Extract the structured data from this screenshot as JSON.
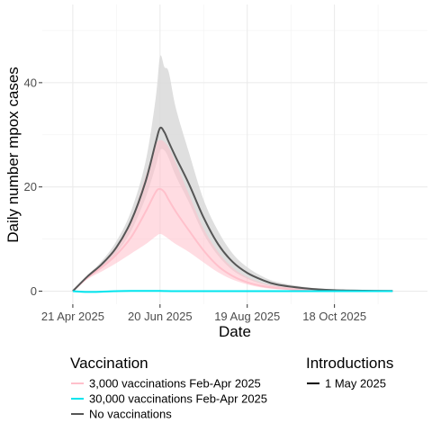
{
  "chart_data": {
    "type": "line",
    "xlabel": "Date",
    "ylabel": "Daily number mpox cases",
    "x_ticks": [
      "21 Apr 2025",
      "20 Jun 2025",
      "19 Aug 2025",
      "18 Oct 2025"
    ],
    "y_ticks": [
      "0",
      "20",
      "40"
    ],
    "xlim": [
      "2025-03-31",
      "2025-12-21"
    ],
    "ylim": [
      -2.5,
      55
    ],
    "grid": true,
    "legend_position": "bottom",
    "colors": {
      "3,000 vaccinations Feb-Apr 2025": "#ffc0cb",
      "30,000 vaccinations Feb-Apr 2025": "#00e5ee",
      "No vaccinations": "#555555",
      "ribbon_none": "#d9d9d9",
      "ribbon_3000": "#ffc0cb"
    },
    "series": [
      {
        "name": "No vaccinations",
        "x": [
          "2025-04-21",
          "2025-05-01",
          "2025-05-11",
          "2025-05-21",
          "2025-05-31",
          "2025-06-10",
          "2025-06-17",
          "2025-06-20",
          "2025-06-23",
          "2025-06-26",
          "2025-07-01",
          "2025-07-10",
          "2025-07-20",
          "2025-07-30",
          "2025-08-09",
          "2025-08-19",
          "2025-08-29",
          "2025-09-08",
          "2025-09-28",
          "2025-10-18",
          "2025-11-07",
          "2025-11-27"
        ],
        "y": [
          0,
          2.8,
          5.2,
          8.4,
          13.4,
          21,
          28.5,
          31.3,
          30.5,
          28.6,
          25.6,
          20.5,
          14.1,
          9.0,
          5.6,
          3.5,
          2.2,
          1.3,
          0.55,
          0.2,
          0.1,
          0.05
        ],
        "lower": [
          0,
          2.5,
          4.6,
          7.3,
          11.5,
          17.9,
          24.0,
          27.0,
          27.0,
          25.5,
          22.0,
          17.0,
          11.0,
          6.8,
          4.0,
          2.4,
          1.4,
          0.8,
          0.3,
          0.1,
          0.05,
          0.02
        ],
        "upper": [
          0,
          3.0,
          5.8,
          9.6,
          15.3,
          24.8,
          37.0,
          45.0,
          43.0,
          42.0,
          35.0,
          26.5,
          17.5,
          11.5,
          7.2,
          4.6,
          2.9,
          1.8,
          0.8,
          0.3,
          0.15,
          0.08
        ]
      },
      {
        "name": "3,000 vaccinations Feb-Apr 2025",
        "x": [
          "2025-04-21",
          "2025-05-01",
          "2025-05-11",
          "2025-05-21",
          "2025-05-31",
          "2025-06-10",
          "2025-06-17",
          "2025-06-20",
          "2025-06-23",
          "2025-06-26",
          "2025-07-01",
          "2025-07-10",
          "2025-07-20",
          "2025-07-30",
          "2025-08-09",
          "2025-08-19",
          "2025-08-29",
          "2025-09-08",
          "2025-09-28",
          "2025-10-18",
          "2025-11-07",
          "2025-11-27"
        ],
        "y": [
          0,
          2.6,
          4.6,
          7.0,
          10.3,
          15.2,
          19.0,
          19.6,
          19.0,
          17.5,
          15.2,
          11.6,
          7.8,
          4.8,
          2.9,
          1.7,
          1.0,
          0.6,
          0.2,
          0.08,
          0.04,
          0.02
        ],
        "lower": [
          0,
          2.3,
          3.8,
          5.4,
          7.2,
          9.0,
          10.5,
          11.0,
          10.6,
          10.0,
          9.0,
          7.5,
          5.5,
          3.6,
          2.2,
          1.3,
          0.7,
          0.4,
          0.15,
          0.05,
          0.02,
          0.01
        ],
        "upper": [
          0,
          2.9,
          5.4,
          8.7,
          13.6,
          22.0,
          28.0,
          29.0,
          28.6,
          27.5,
          24.5,
          18.5,
          12.0,
          7.5,
          4.5,
          2.7,
          1.6,
          1.0,
          0.4,
          0.15,
          0.07,
          0.03
        ]
      },
      {
        "name": "30,000 vaccinations Feb-Apr 2025",
        "x": [
          "2025-04-21",
          "2025-05-01",
          "2025-05-11",
          "2025-05-21",
          "2025-05-31",
          "2025-06-10",
          "2025-06-20",
          "2025-07-01",
          "2025-07-20",
          "2025-08-09",
          "2025-08-29",
          "2025-09-28",
          "2025-10-18",
          "2025-11-27"
        ],
        "y": [
          0,
          -0.15,
          -0.1,
          0.0,
          0.05,
          0.05,
          0.05,
          0.0,
          0.0,
          0.0,
          0.0,
          0.0,
          0.0,
          0.0
        ]
      }
    ],
    "legends": [
      {
        "title": "Vaccination",
        "items": [
          "3,000 vaccinations Feb-Apr 2025",
          "30,000 vaccinations Feb-Apr 2025",
          "No vaccinations"
        ]
      },
      {
        "title": "Introductions",
        "items": [
          "1 May 2025"
        ]
      }
    ]
  }
}
